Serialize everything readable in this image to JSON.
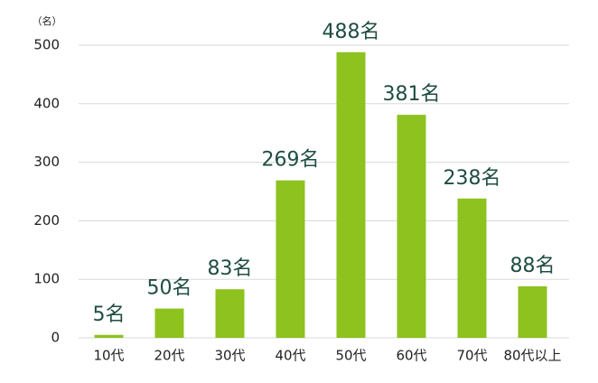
{
  "chart_data": {
    "type": "bar",
    "y_label": "（名）",
    "categories": [
      "10代",
      "20代",
      "30代",
      "40代",
      "50代",
      "60代",
      "70代",
      "80代以上"
    ],
    "values": [
      5,
      50,
      83,
      269,
      488,
      381,
      238,
      88
    ],
    "value_labels": [
      "5名",
      "50名",
      "83名",
      "269名",
      "488名",
      "381名",
      "238名",
      "88名"
    ],
    "color": "#8dc21f",
    "ylim": [
      0,
      500
    ],
    "yticks": [
      0,
      100,
      200,
      300,
      400,
      500
    ],
    "grid": true
  }
}
